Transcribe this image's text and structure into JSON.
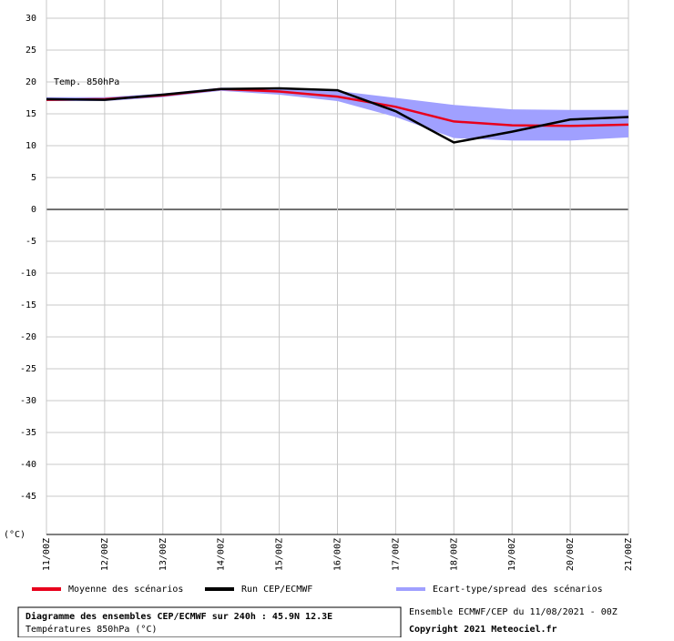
{
  "chart_data": {
    "type": "line",
    "annotation": "Temp. 850hPa",
    "y_unit": "(°C)",
    "categories": [
      "11/00Z",
      "12/00Z",
      "13/00Z",
      "14/00Z",
      "15/00Z",
      "16/00Z",
      "17/00Z",
      "18/00Z",
      "19/00Z",
      "20/00Z",
      "21/00Z"
    ],
    "series": [
      {
        "name": "Moyenne des scénarios",
        "color": "#e8001c",
        "values": [
          17.2,
          17.3,
          17.9,
          18.9,
          18.5,
          17.7,
          16.1,
          13.8,
          13.2,
          13.1,
          13.3
        ]
      },
      {
        "name": "Run CEP/ECMWF",
        "color": "#000000",
        "values": [
          17.3,
          17.2,
          18.0,
          18.9,
          19.0,
          18.7,
          15.4,
          10.5,
          12.2,
          14.1,
          14.5
        ]
      },
      {
        "name": "Ecart-type/spread des scénarios",
        "color": "#a0a0ff",
        "upper": [
          17.6,
          17.6,
          18.2,
          19.1,
          19.0,
          18.6,
          17.5,
          16.4,
          15.7,
          15.6,
          15.6
        ],
        "lower": [
          17.0,
          17.0,
          17.6,
          18.6,
          18.0,
          17.0,
          14.5,
          11.2,
          10.8,
          10.8,
          11.3
        ]
      }
    ],
    "ylim": [
      -51,
      30
    ],
    "yticks": [
      30,
      25,
      20,
      15,
      10,
      5,
      0,
      -5,
      -10,
      -15,
      -20,
      -25,
      -30,
      -35,
      -40,
      -45
    ],
    "grid": true,
    "footer": {
      "title": "Diagramme des ensembles CEP/ECMWF sur 240h : 45.9N 12.3E",
      "subtitle": "Températures 850hPa (°C)",
      "run": "Ensemble ECMWF/CEP du 11/08/2021 - 00Z",
      "copyright": "Copyright 2021 Meteociel.fr"
    }
  }
}
